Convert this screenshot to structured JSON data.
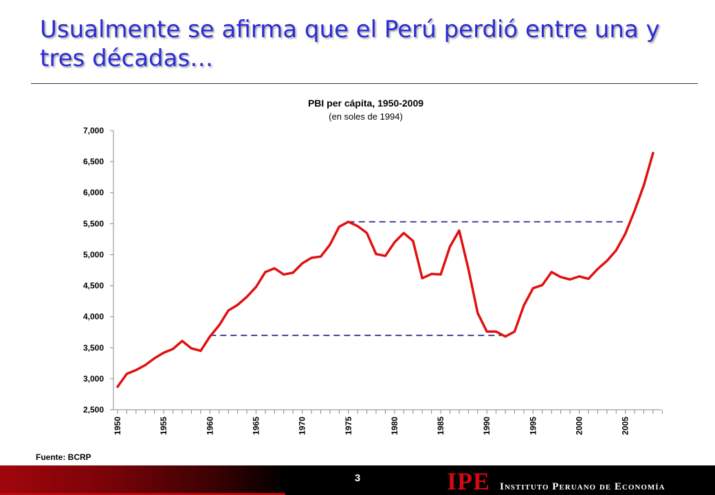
{
  "slide": {
    "title": "Usualmente se afirma que el Perú perdió entre una y tres décadas…",
    "source": "Fuente: BCRP",
    "page_number": "3"
  },
  "logo": {
    "mark": "IPE",
    "name": "Instituto Peruano de Economía"
  },
  "colors": {
    "title": "#2b2bd6",
    "series": "#e01010",
    "reference_lines": "#2a2a8a",
    "footer_red": "#a0060c"
  },
  "chart_data": {
    "type": "line",
    "title": "PBI per cápita, 1950-2009",
    "subtitle": "(en soles de 1994)",
    "xlabel": "",
    "ylabel": "",
    "ylim": [
      2500,
      7000
    ],
    "xlim": [
      1950,
      2009
    ],
    "y_ticks": [
      "2,500",
      "3,000",
      "3,500",
      "4,000",
      "4,500",
      "5,000",
      "5,500",
      "6,000",
      "6,500",
      "7,000"
    ],
    "y_tick_values": [
      2500,
      3000,
      3500,
      4000,
      4500,
      5000,
      5500,
      6000,
      6500,
      7000
    ],
    "x_tick_labels": [
      "1950",
      "1955",
      "1960",
      "1965",
      "1970",
      "1975",
      "1980",
      "1985",
      "1990",
      "1995",
      "2000",
      "2005"
    ],
    "x_tick_values": [
      1950,
      1955,
      1960,
      1965,
      1970,
      1975,
      1980,
      1985,
      1990,
      1995,
      2000,
      2005
    ],
    "grid": false,
    "legend": "none",
    "series": [
      {
        "x": [
          1950,
          1951,
          1952,
          1953,
          1954,
          1955,
          1956,
          1957,
          1958,
          1959,
          1960,
          1961,
          1962,
          1963,
          1964,
          1965,
          1966,
          1967,
          1968,
          1969,
          1970,
          1971,
          1972,
          1973,
          1974,
          1975,
          1976,
          1977,
          1978,
          1979,
          1980,
          1981,
          1982,
          1983,
          1984,
          1985,
          1986,
          1987,
          1988,
          1989,
          1990,
          1991,
          1992,
          1993,
          1994,
          1995,
          1996,
          1997,
          1998,
          1999,
          2000,
          2001,
          2002,
          2003,
          2004,
          2005,
          2006,
          2007,
          2008
        ],
        "values": [
          2870,
          3080,
          3140,
          3220,
          3330,
          3420,
          3480,
          3610,
          3490,
          3450,
          3680,
          3860,
          4100,
          4190,
          4320,
          4480,
          4720,
          4780,
          4680,
          4710,
          4860,
          4950,
          4970,
          5160,
          5450,
          5530,
          5460,
          5350,
          5010,
          4980,
          5200,
          5350,
          5220,
          4620,
          4690,
          4680,
          5130,
          5390,
          4770,
          4060,
          3760,
          3760,
          3680,
          3760,
          4180,
          4460,
          4510,
          4720,
          4640,
          4600,
          4650,
          4610,
          4770,
          4900,
          5070,
          5340,
          5710,
          6120,
          6640
        ]
      }
    ],
    "reference_lines": [
      {
        "x_start": 1960,
        "x_end": 1992,
        "y": 3700
      },
      {
        "x_start": 1975,
        "x_end": 2005,
        "y": 5530
      }
    ]
  }
}
